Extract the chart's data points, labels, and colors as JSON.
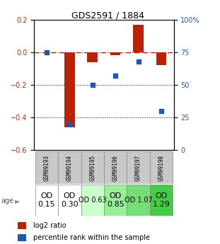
{
  "title": "GDS2591 / 1884",
  "samples": [
    "GSM99193",
    "GSM99194",
    "GSM99195",
    "GSM99196",
    "GSM99197",
    "GSM99198"
  ],
  "log2_ratio": [
    0.0,
    -0.46,
    -0.06,
    -0.02,
    0.17,
    -0.08
  ],
  "percentile_rank": [
    75,
    20,
    50,
    57,
    68,
    30
  ],
  "bar_color": "#bb2200",
  "dot_color": "#2255bb",
  "ylim_left": [
    -0.6,
    0.2
  ],
  "ylim_right": [
    0,
    100
  ],
  "yticks_left": [
    0.2,
    0.0,
    -0.2,
    -0.4,
    -0.6
  ],
  "yticks_right": [
    100,
    75,
    50,
    25,
    0
  ],
  "age_labels": [
    "OD\n0.15",
    "OD\n0.30",
    "OD 0.63",
    "OD\n0.85",
    "OD 1.07",
    "OD\n1.29"
  ],
  "age_colors": [
    "#ffffff",
    "#ffffff",
    "#ccffcc",
    "#99ee99",
    "#77dd77",
    "#44cc44"
  ],
  "age_fontsizes": [
    8,
    8,
    7,
    8,
    7,
    8
  ],
  "zero_line_color": "#cc0000",
  "left_tick_color": "#cc2200",
  "right_tick_color": "#2255bb"
}
